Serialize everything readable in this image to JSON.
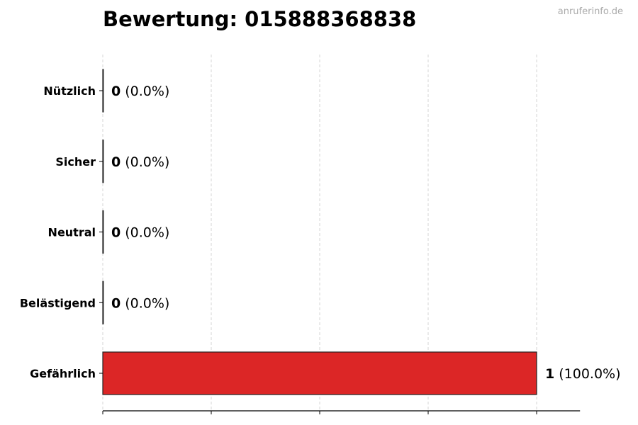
{
  "chart_data": {
    "type": "bar",
    "orientation": "horizontal",
    "title": "Bewertung: 015888368838",
    "watermark": "anruferinfo.de",
    "categories": [
      "Nützlich",
      "Sicher",
      "Neutral",
      "Belästigend",
      "Gefährlich"
    ],
    "values": [
      0,
      0,
      0,
      0,
      1
    ],
    "labels": [
      {
        "count": "0",
        "pct": "(0.0%)"
      },
      {
        "count": "0",
        "pct": "(0.0%)"
      },
      {
        "count": "0",
        "pct": "(0.0%)"
      },
      {
        "count": "0",
        "pct": "(0.0%)"
      },
      {
        "count": "1",
        "pct": "(100.0%)"
      }
    ],
    "colors": [
      "#dc2626",
      "#dc2626",
      "#dc2626",
      "#dc2626",
      "#dc2626"
    ],
    "xlim": [
      0,
      1.1
    ],
    "xticks": [
      0,
      0.25,
      0.5,
      0.75,
      1
    ],
    "xtick_labels_shown": false,
    "grid": "x-dashed",
    "xlabel": "",
    "ylabel": ""
  }
}
